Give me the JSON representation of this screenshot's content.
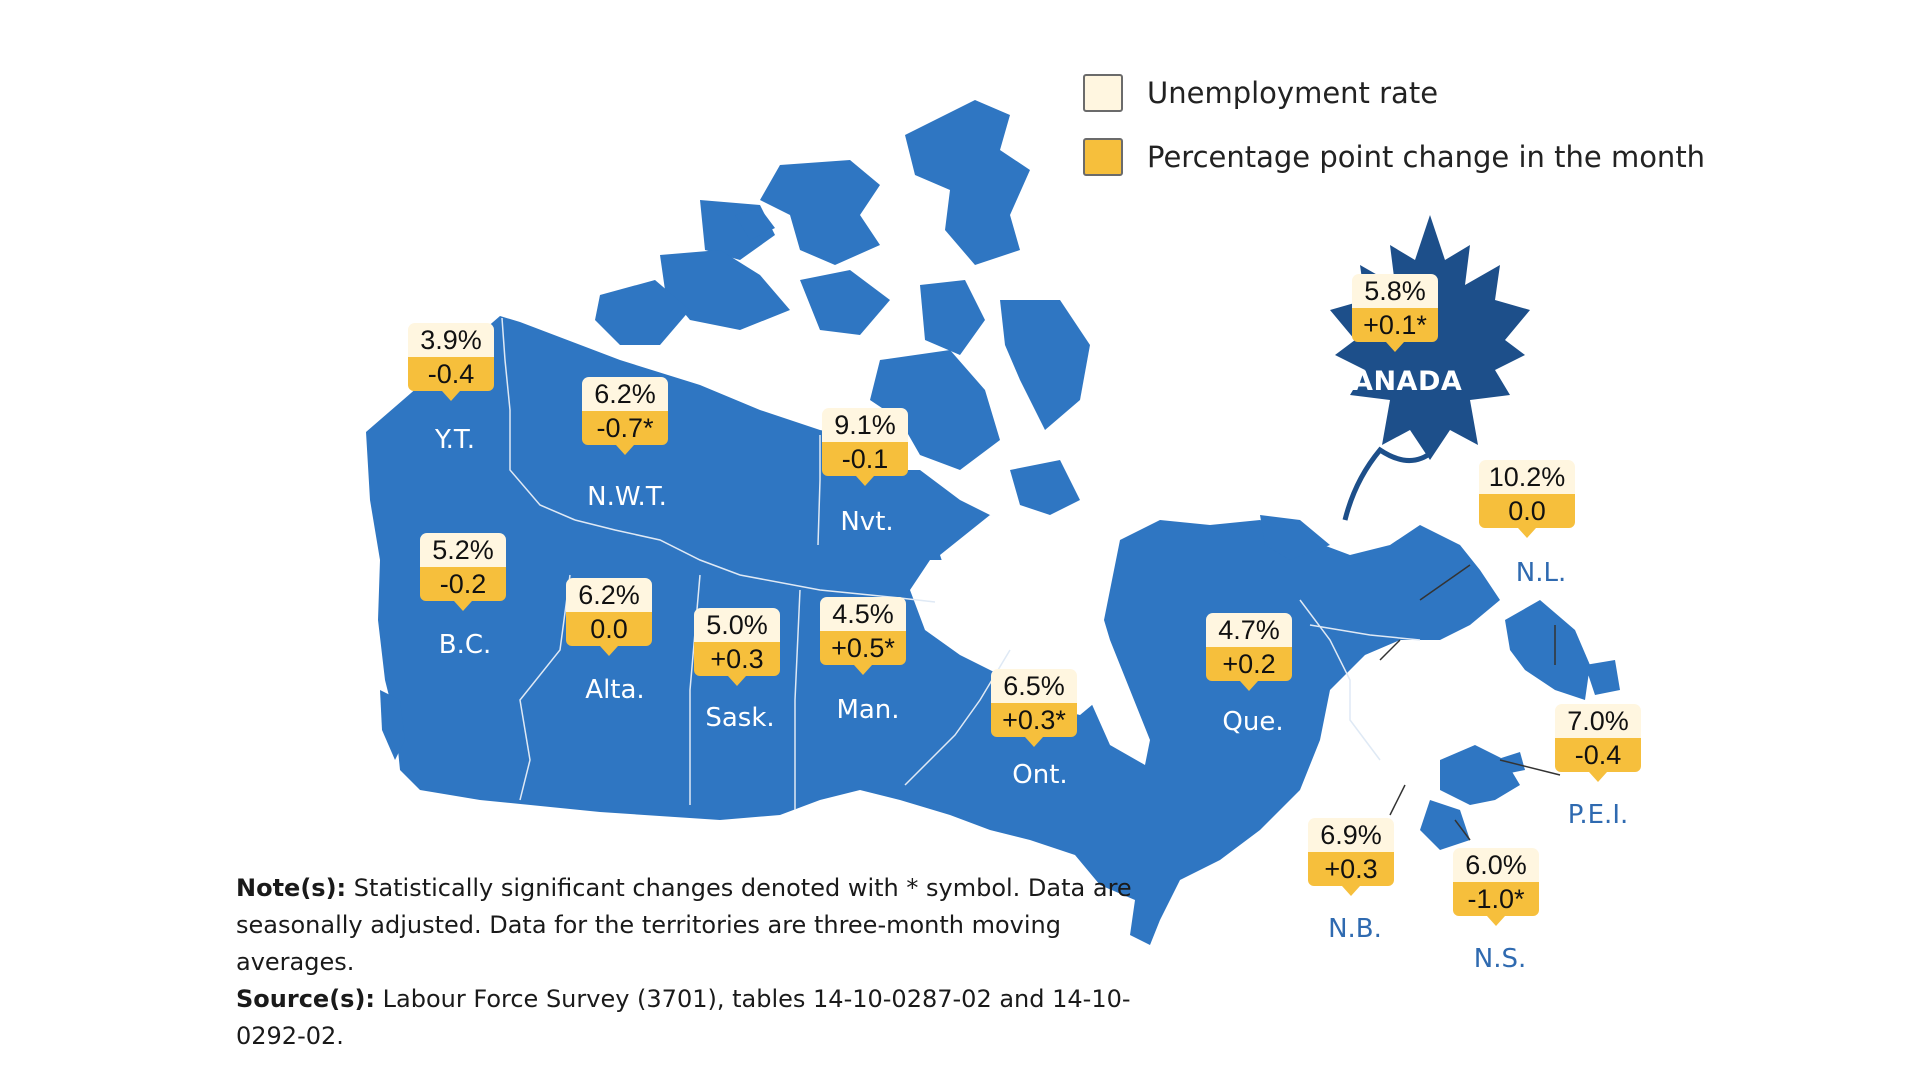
{
  "legend": {
    "rate_label": "Unemployment rate",
    "change_label": "Percentage point change in the month",
    "rate_color": "#fff6e0",
    "change_color": "#f6bf3c"
  },
  "colors": {
    "map_fill": "#2f76c2",
    "map_border": "#dfe9f5",
    "leaf_fill": "#1d4f8a",
    "label_offmap": "#2f6ab0"
  },
  "national": {
    "label": "CANADA",
    "rate": "5.8%",
    "change": "+0.1*"
  },
  "regions": [
    {
      "id": "yt",
      "label": "Y.T.",
      "rate": "3.9%",
      "change": "-0.4"
    },
    {
      "id": "nwt",
      "label": "N.W.T.",
      "rate": "6.2%",
      "change": "-0.7*"
    },
    {
      "id": "nvt",
      "label": "Nvt.",
      "rate": "9.1%",
      "change": "-0.1"
    },
    {
      "id": "bc",
      "label": "B.C.",
      "rate": "5.2%",
      "change": "-0.2"
    },
    {
      "id": "alta",
      "label": "Alta.",
      "rate": "6.2%",
      "change": "0.0"
    },
    {
      "id": "sask",
      "label": "Sask.",
      "rate": "5.0%",
      "change": "+0.3"
    },
    {
      "id": "man",
      "label": "Man.",
      "rate": "4.5%",
      "change": "+0.5*"
    },
    {
      "id": "ont",
      "label": "Ont.",
      "rate": "6.5%",
      "change": "+0.3*"
    },
    {
      "id": "que",
      "label": "Que.",
      "rate": "4.7%",
      "change": "+0.2"
    },
    {
      "id": "nl",
      "label": "N.L.",
      "rate": "10.2%",
      "change": "0.0"
    },
    {
      "id": "pei",
      "label": "P.E.I.",
      "rate": "7.0%",
      "change": "-0.4"
    },
    {
      "id": "nb",
      "label": "N.B.",
      "rate": "6.9%",
      "change": "+0.3"
    },
    {
      "id": "ns",
      "label": "N.S.",
      "rate": "6.0%",
      "change": "-1.0*"
    }
  ],
  "notes": {
    "note_heading": "Note(s):",
    "note_text": "Statistically significant changes denoted with * symbol. Data are seasonally adjusted. Data for the territories are three-month moving averages.",
    "source_heading": "Source(s):",
    "source_text": "Labour Force Survey (3701), tables 14-10-0287-02 and 14-10-0292-02."
  }
}
